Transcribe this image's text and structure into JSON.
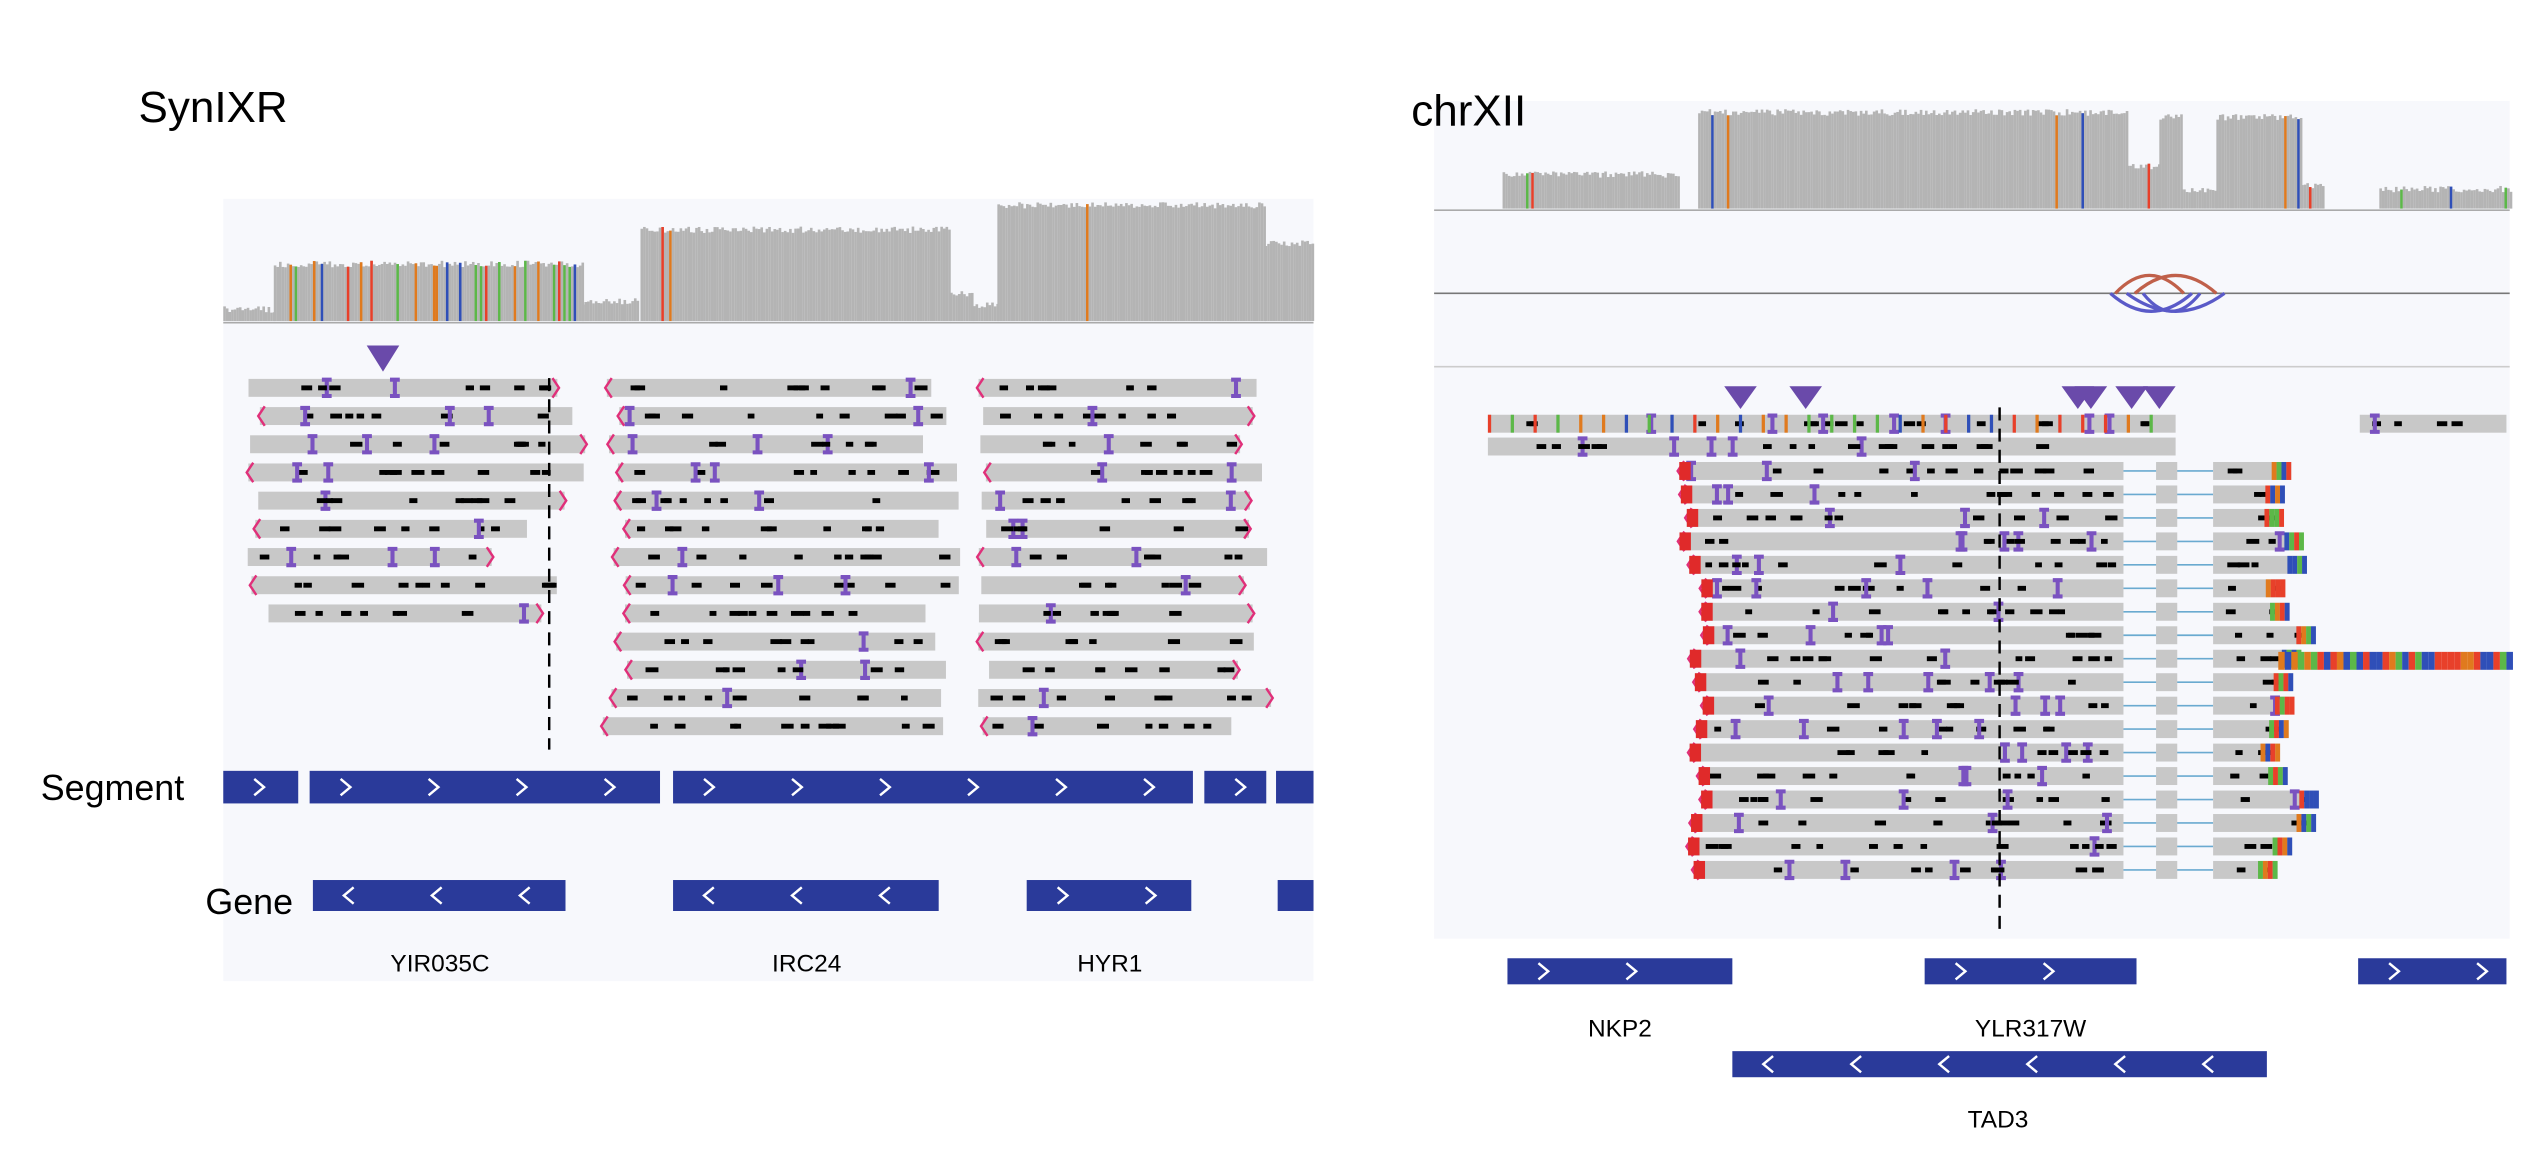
{
  "panels": [
    {
      "title": "SynIXR",
      "track_labels": [
        "Segment",
        "Gene"
      ],
      "genes": [
        "YIR035C",
        "IRC24",
        "HYR1"
      ]
    },
    {
      "title": "chrXII",
      "genes": [
        "NKP2",
        "YLR317W",
        "TAD3"
      ]
    }
  ]
}
